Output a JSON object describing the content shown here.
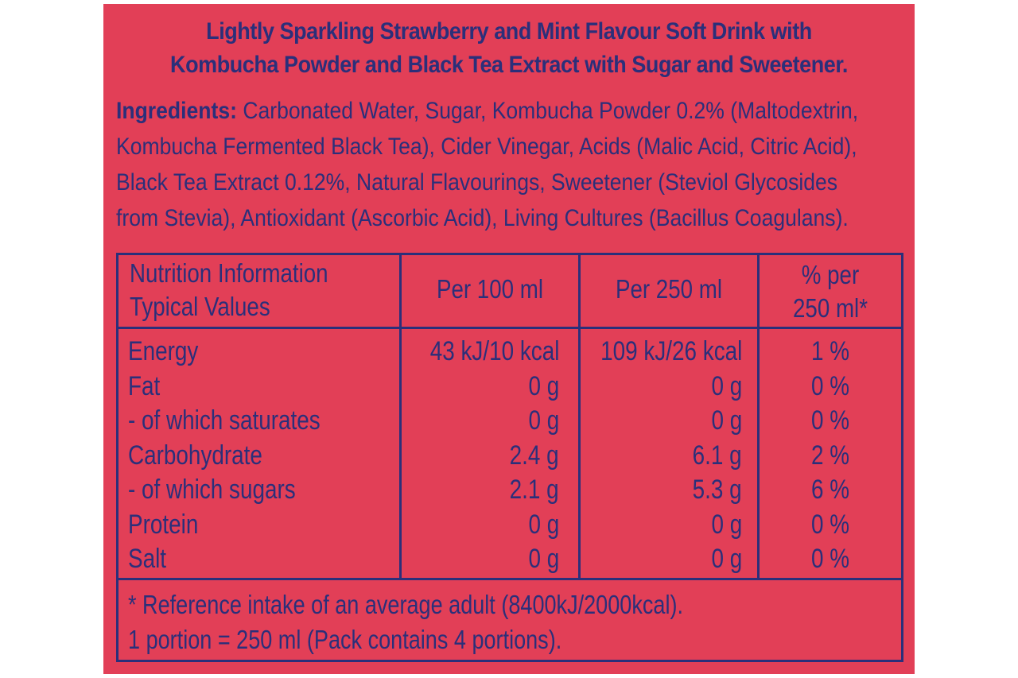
{
  "colors": {
    "background": "#e23f57",
    "text": "#2b2f7a"
  },
  "headline": {
    "line1": "Lightly Sparkling Strawberry and Mint Flavour Soft Drink with",
    "line2": "Kombucha Powder and Black Tea Extract with Sugar and Sweetener."
  },
  "ingredients": {
    "label": "Ingredients:",
    "line1": " Carbonated Water, Sugar, Kombucha Powder 0.2% (Maltodextrin,",
    "line2": "Kombucha Fermented Black Tea), Cider Vinegar, Acids (Malic Acid, Citric Acid),",
    "line3": "Black Tea Extract 0.12%, Natural Flavourings, Sweetener (Steviol Glycosides",
    "line4": "from Stevia), Antioxidant (Ascorbic Acid), Living Cultures (Bacillus Coagulans)."
  },
  "nutrition": {
    "header": {
      "title_line1": "Nutrition Information",
      "title_line2": "Typical Values",
      "col_per100": "Per 100 ml",
      "col_per250": "Per 250 ml",
      "col_pct_line1": "% per",
      "col_pct_line2": "250 ml*"
    },
    "rows": [
      {
        "name": "Energy",
        "per100": "43 kJ/10 kcal",
        "per250": "109 kJ/26 kcal",
        "pct": "1 %"
      },
      {
        "name": "Fat",
        "per100": "0 g",
        "per250": "0 g",
        "pct": "0 %"
      },
      {
        "name": "- of which saturates",
        "per100": "0 g",
        "per250": "0 g",
        "pct": "0 %"
      },
      {
        "name": "Carbohydrate",
        "per100": "2.4 g",
        "per250": "6.1 g",
        "pct": "2 %"
      },
      {
        "name": "- of which sugars",
        "per100": "2.1 g",
        "per250": "5.3 g",
        "pct": "6 %"
      },
      {
        "name": "Protein",
        "per100": "0 g",
        "per250": "0 g",
        "pct": "0 %"
      },
      {
        "name": "Salt",
        "per100": "0 g",
        "per250": "0 g",
        "pct": "0 %"
      }
    ],
    "footnote_line1": "* Reference intake of an average adult (8400kJ/2000kcal).",
    "footnote_line2": "1 portion = 250 ml (Pack contains 4 portions)."
  }
}
